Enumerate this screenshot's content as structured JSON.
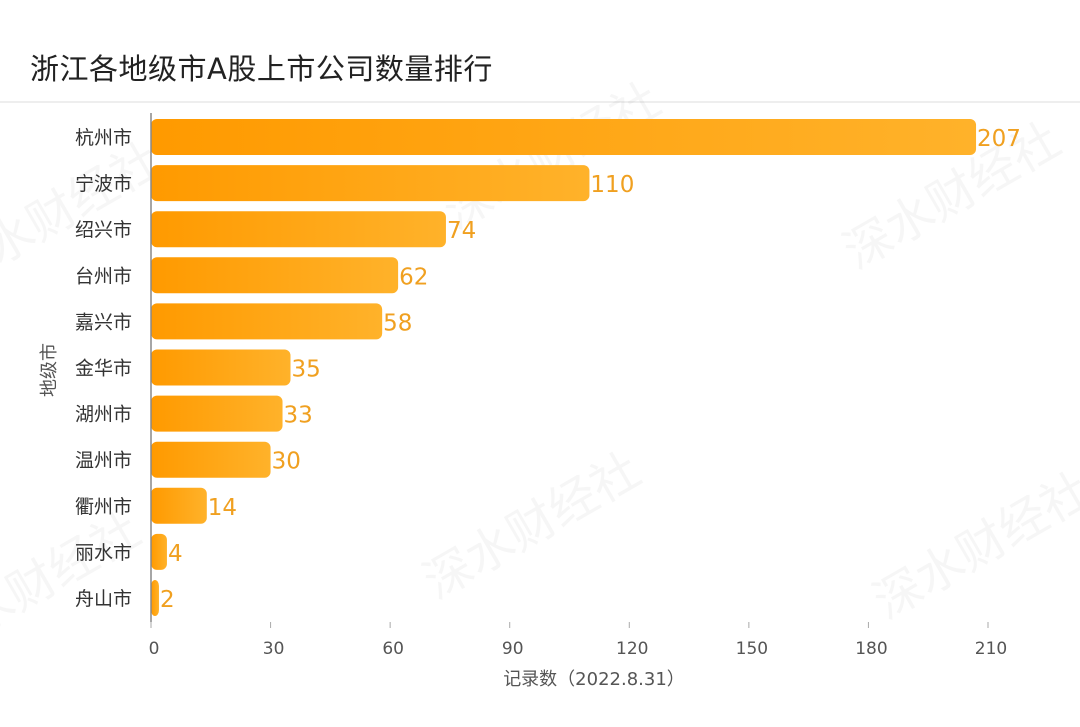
{
  "chart_data": {
    "type": "bar",
    "orientation": "horizontal",
    "title": "浙江各地级市A股上市公司数量排行",
    "xlabel": "记录数（2022.8.31）",
    "ylabel": "地级市",
    "categories": [
      "杭州市",
      "宁波市",
      "绍兴市",
      "台州市",
      "嘉兴市",
      "金华市",
      "湖州市",
      "温州市",
      "衢州市",
      "丽水市",
      "舟山市"
    ],
    "values": [
      207,
      110,
      74,
      62,
      58,
      35,
      33,
      30,
      14,
      4,
      2
    ],
    "xlim": [
      0,
      210
    ],
    "xticks": [
      0,
      30,
      60,
      90,
      120,
      150,
      180,
      210
    ],
    "grid": false,
    "bar_color_start": "#ff9a00",
    "bar_color_end": "#ffb22a",
    "value_label_color": "#f0a020",
    "watermark": "深水财经社"
  }
}
